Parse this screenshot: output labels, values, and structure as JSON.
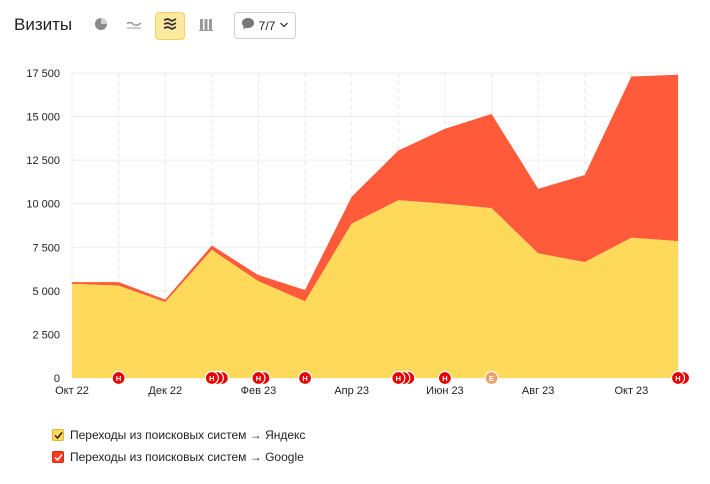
{
  "header": {
    "title": "Визиты",
    "notes_label": "7/7"
  },
  "toolbar": {
    "icons": [
      "pie-chart-icon",
      "line-chart-icon",
      "stacked-area-icon",
      "bar-chart-icon",
      "comment-icon",
      "chevron-down-icon"
    ]
  },
  "colors": {
    "yandex": "#ffd95a",
    "google": "#ff5a3a",
    "note": "#e60000",
    "note_event": "#e8a06a",
    "active_button": "#fde9a0"
  },
  "chart_data": {
    "type": "area",
    "stacked": true,
    "x": [
      "Окт 22",
      "Ноя 22",
      "Дек 22",
      "Янв 23",
      "Фев 23",
      "Мар 23",
      "Апр 23",
      "Май 23",
      "Июн 23",
      "Июл 23",
      "Авг 23",
      "Сен 23",
      "Окт 23",
      "Ноя 23"
    ],
    "x_tick_labels": [
      "Окт 22",
      "Дек 22",
      "Фев 23",
      "Апр 23",
      "Июн 23",
      "Авг 23",
      "Окт 23"
    ],
    "series": [
      {
        "name": "Переходы из поисковых систем → Яндекс",
        "values": [
          5400,
          5300,
          4350,
          7350,
          5550,
          4400,
          8850,
          10200,
          10000,
          9750,
          7150,
          6650,
          8050,
          7850
        ]
      },
      {
        "name": "Переходы из поисковых систем → Google",
        "values": [
          100,
          200,
          150,
          250,
          350,
          650,
          1550,
          2850,
          4300,
          5400,
          3700,
          5000,
          9250,
          9550
        ]
      }
    ],
    "ylim": [
      0,
      17500
    ],
    "y_tick_labels": [
      "0",
      "2 500",
      "5 000",
      "7 500",
      "10 000",
      "12 500",
      "15 000",
      "17 500"
    ],
    "grid": true,
    "legend_position": "bottom-left",
    "annotations": [
      {
        "x_index": 1.0,
        "labels": [
          "Н"
        ]
      },
      {
        "x_index": 3.0,
        "labels": [
          "Н",
          "",
          ""
        ]
      },
      {
        "x_index": 4.0,
        "labels": [
          "Н",
          ""
        ]
      },
      {
        "x_index": 5.0,
        "labels": [
          "Н"
        ]
      },
      {
        "x_index": 7.0,
        "labels": [
          "Н",
          "",
          ""
        ]
      },
      {
        "x_index": 8.0,
        "labels": [
          "Н"
        ]
      },
      {
        "x_index": 9.0,
        "labels": [
          "Е"
        ],
        "kind": "event"
      },
      {
        "x_index": 13.0,
        "labels": [
          "Н",
          ""
        ]
      }
    ]
  }
}
